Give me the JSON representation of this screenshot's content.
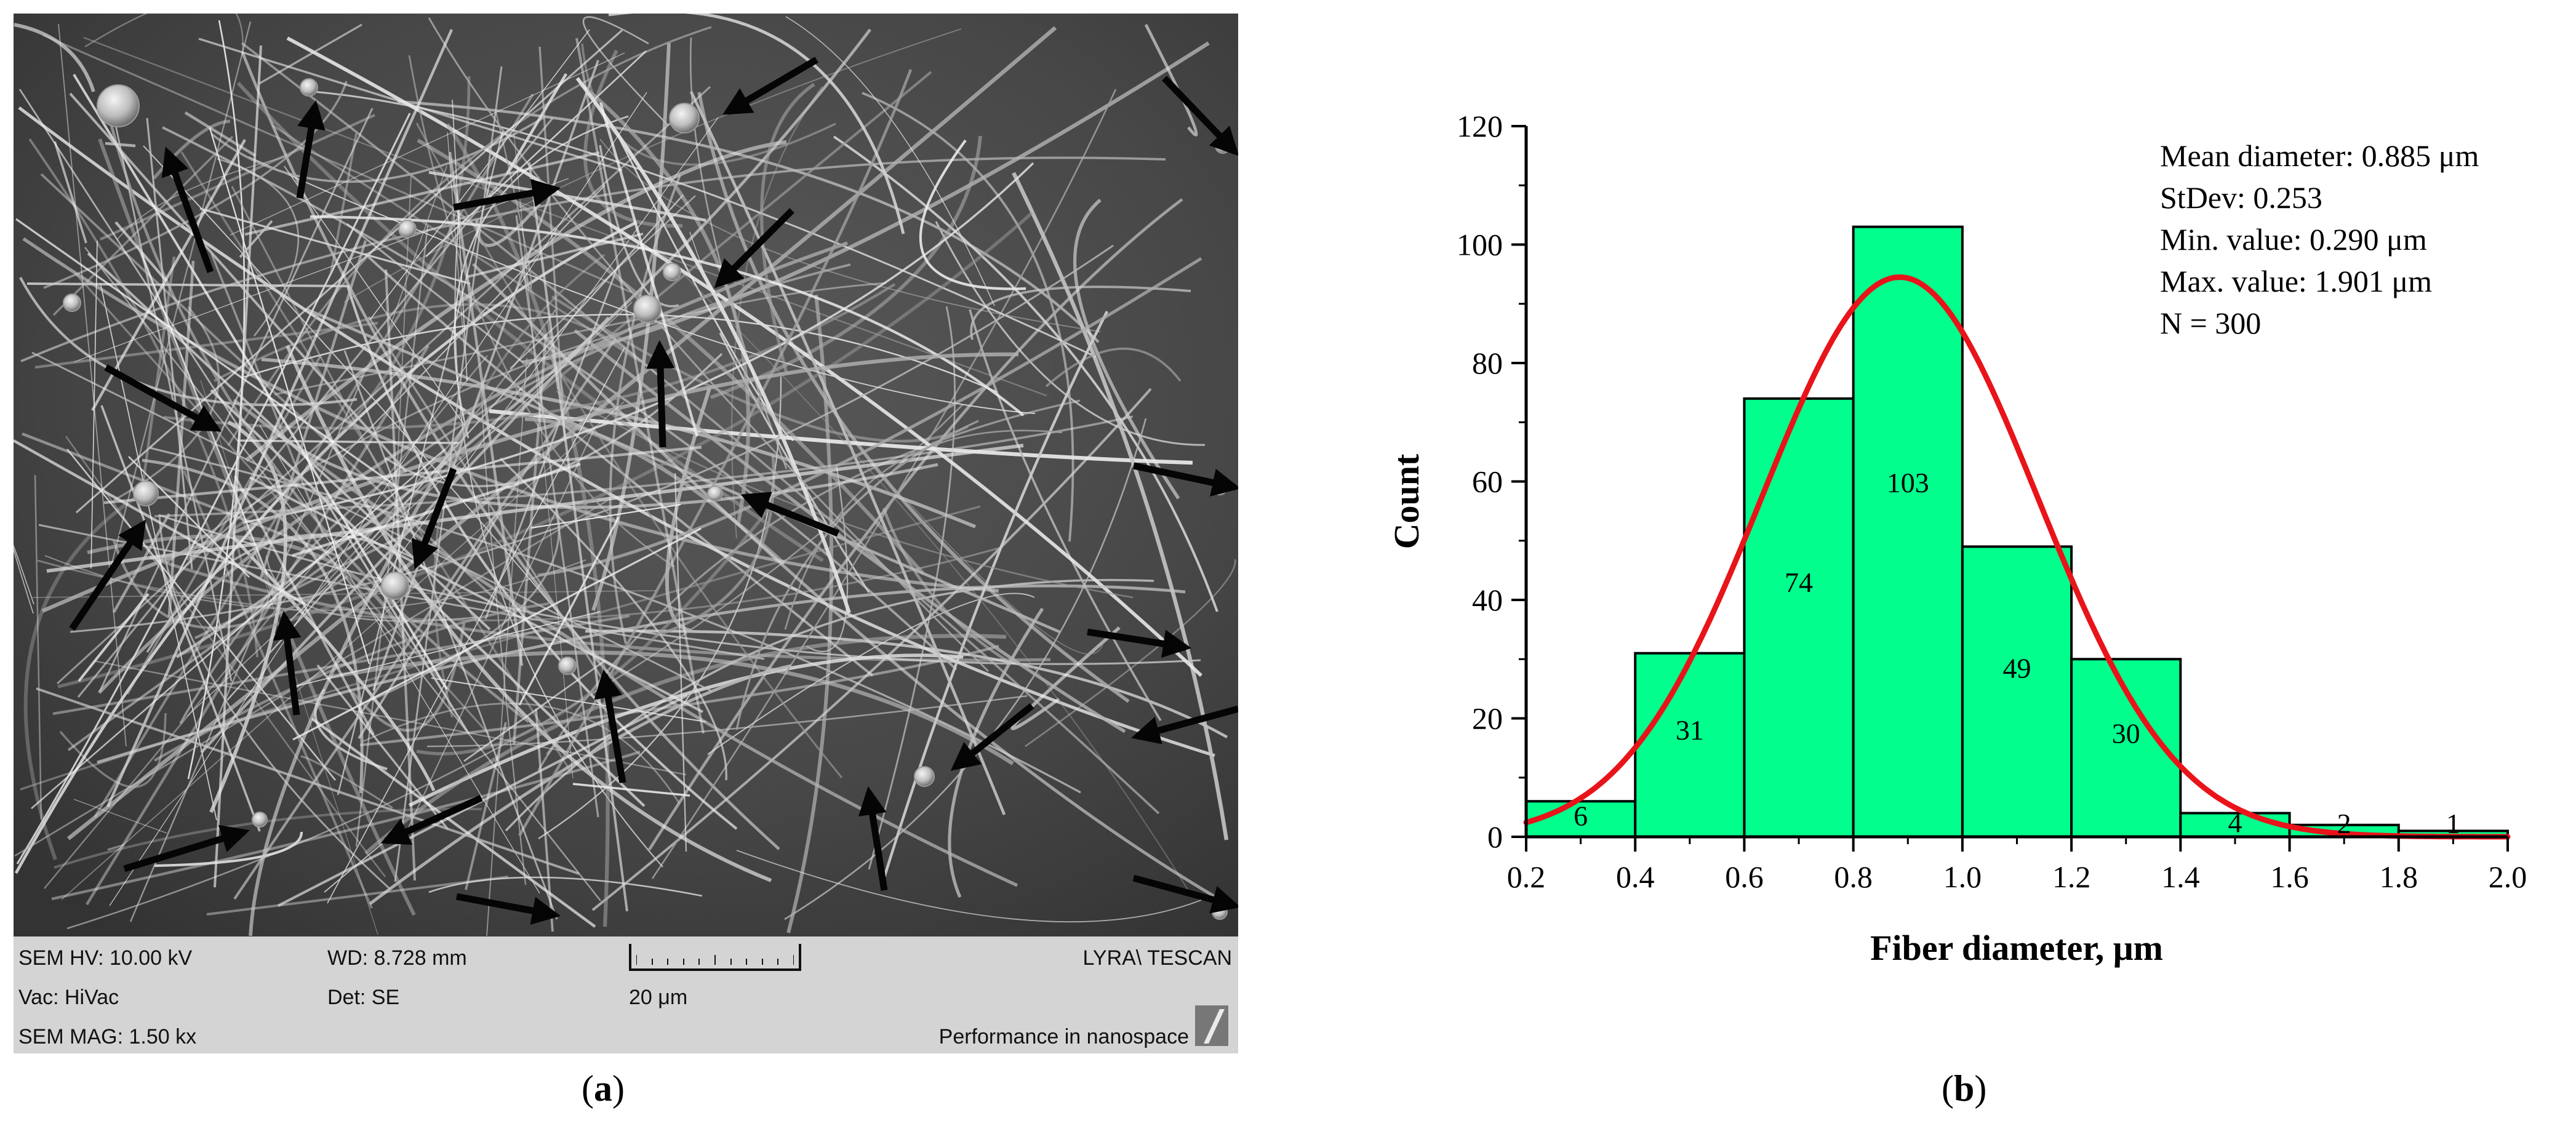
{
  "panel_a": {
    "caption_letter": "a",
    "databar": {
      "hv": "SEM HV: 10.00 kV",
      "wd": "WD: 8.728 mm",
      "vac": "Vac: HiVac",
      "det": "Det: SE",
      "mag": "SEM MAG: 1.50 kx",
      "scale": "20 μm",
      "brand": "LYRA\\ TESCAN",
      "slogan": "Performance in nanospace"
    }
  },
  "panel_b": {
    "caption_letter": "b",
    "stats": [
      "Mean diameter: 0.885 μm",
      "StDev: 0.253",
      "Min. value: 0.290 μm",
      "Max. value: 1.901 μm",
      "N = 300"
    ]
  },
  "colors": {
    "bar_fill": "#00ff8c",
    "fit_curve": "#e8141a",
    "bar_edge": "#000000"
  },
  "chart_data": {
    "type": "bar",
    "title": "",
    "xlabel": "Fiber diameter, μm",
    "ylabel": "Count",
    "xlim": [
      0.2,
      2.0
    ],
    "ylim": [
      0,
      120
    ],
    "xticks": [
      "0.2",
      "0.4",
      "0.6",
      "0.8",
      "1.0",
      "1.2",
      "1.4",
      "1.6",
      "1.8",
      "2.0"
    ],
    "yticks": [
      "0",
      "20",
      "40",
      "60",
      "80",
      "100",
      "120"
    ],
    "bin_edges": [
      0.2,
      0.4,
      0.6,
      0.8,
      1.0,
      1.2,
      1.4,
      1.6,
      1.8,
      2.0
    ],
    "values": [
      6,
      31,
      74,
      103,
      49,
      30,
      4,
      2,
      1
    ],
    "data_labels": [
      "6",
      "31",
      "74",
      "103",
      "49",
      "30",
      "4",
      "2",
      "1"
    ],
    "fit": {
      "type": "normal",
      "mean": 0.885,
      "stdev": 0.253,
      "peak": 94.5
    },
    "grid": false,
    "legend": "none"
  }
}
